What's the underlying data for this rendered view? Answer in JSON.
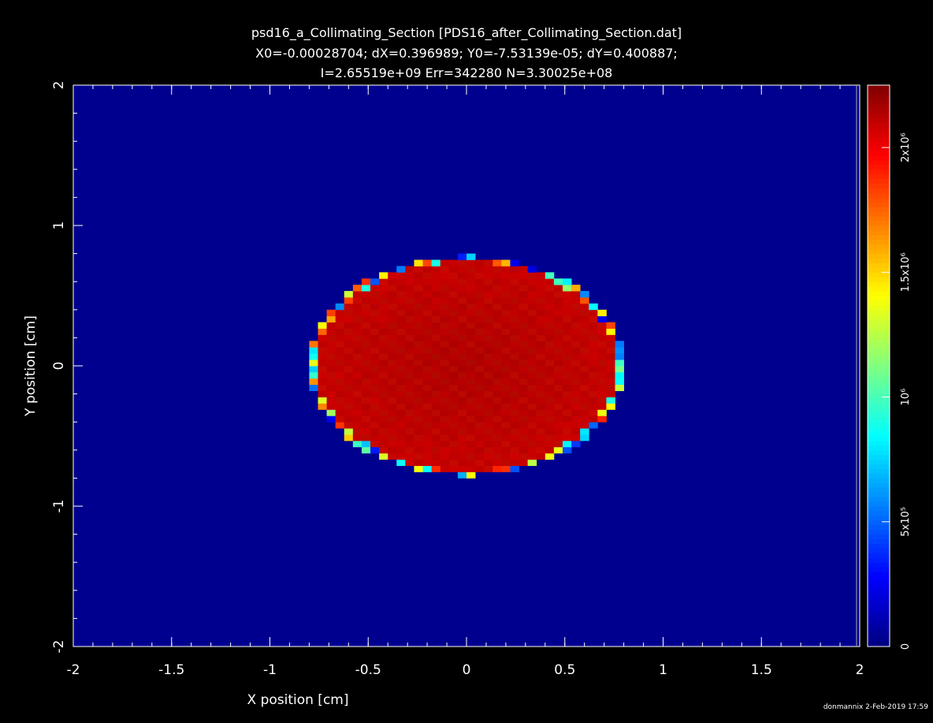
{
  "chart_data": {
    "type": "heatmap",
    "title": "psd16_a_Collimating_Section [PDS16_after_Collimating_Section.dat]",
    "subtitle_lines": [
      "X0=-0.00028704; dX=0.396989; Y0=-7.53139e-05; dY=0.400887;",
      "I=2.65519e+09 Err=342280 N=3.30025e+08"
    ],
    "xlabel": "X position [cm]",
    "ylabel": "Y position [cm]",
    "xlim": [
      -2,
      2
    ],
    "ylim": [
      -2,
      2
    ],
    "xticks": [
      "-2",
      "-1.5",
      "-1",
      "-0.5",
      "0",
      "0.5",
      "1",
      "1.5",
      "2"
    ],
    "xtick_values": [
      -2,
      -1.5,
      -1,
      -0.5,
      0,
      0.5,
      1,
      1.5,
      2
    ],
    "yticks": [
      "-2",
      "-1",
      "0",
      "1",
      "2"
    ],
    "ytick_values": [
      -2,
      -1,
      0,
      1,
      2
    ],
    "background_value": 0,
    "disk": {
      "center_x": 0,
      "center_y": 0,
      "radius_x": 0.8,
      "radius_y": 0.78,
      "interior_value": 2100000,
      "edge_value_range": [
        200000,
        1900000
      ]
    },
    "colorbar": {
      "range": [
        0,
        2250000
      ],
      "ticks": [
        {
          "value": 0,
          "label": "0"
        },
        {
          "value": 500000,
          "label": "5x10⁵"
        },
        {
          "value": 1000000,
          "label": "10⁶"
        },
        {
          "value": 1500000,
          "label": "1.5x10⁶"
        },
        {
          "value": 2000000,
          "label": "2x10⁶"
        }
      ]
    },
    "colors": {
      "background": "#000000",
      "plot_low": "#00008f",
      "plot_high": "#cc0000"
    },
    "footer": "donmannix  2-Feb-2019 17:59"
  }
}
